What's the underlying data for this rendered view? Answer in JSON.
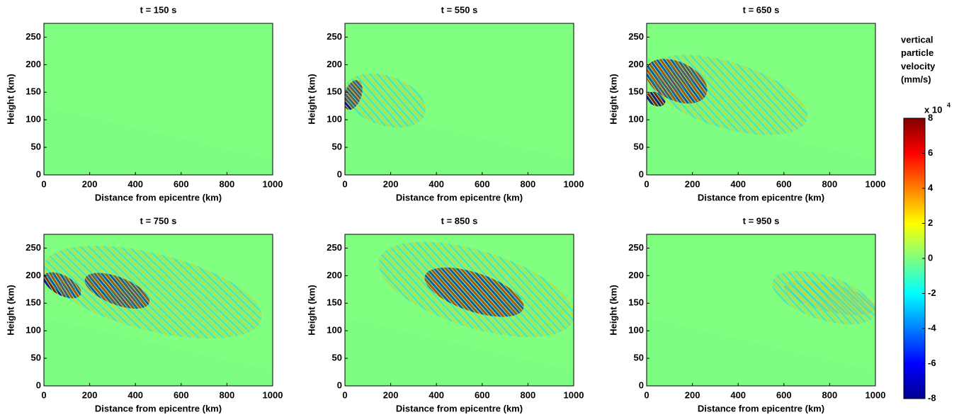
{
  "chart_data": [
    {
      "type": "heatmap",
      "title": "t = 150  s",
      "xlabel": "Distance from epicentre (km)",
      "ylabel": "Height (km)",
      "xlim": [
        0,
        1000
      ],
      "ylim": [
        0,
        275
      ],
      "xticks": [
        0,
        200,
        400,
        600,
        800,
        1000
      ],
      "yticks": [
        0,
        50,
        100,
        150,
        200,
        250
      ]
    },
    {
      "type": "heatmap",
      "title": "t = 550  s",
      "xlabel": "Distance from epicentre (km)",
      "ylabel": "Height (km)",
      "xlim": [
        0,
        1000
      ],
      "ylim": [
        0,
        275
      ],
      "xticks": [
        0,
        200,
        400,
        600,
        800,
        1000
      ],
      "yticks": [
        0,
        50,
        100,
        150,
        200,
        250
      ]
    },
    {
      "type": "heatmap",
      "title": "t = 650  s",
      "xlabel": "Distance from epicentre (km)",
      "ylabel": "Height (km)",
      "xlim": [
        0,
        1000
      ],
      "ylim": [
        0,
        275
      ],
      "xticks": [
        0,
        200,
        400,
        600,
        800,
        1000
      ],
      "yticks": [
        0,
        50,
        100,
        150,
        200,
        250
      ]
    },
    {
      "type": "heatmap",
      "title": "t = 750  s",
      "xlabel": "Distance from epicentre (km)",
      "ylabel": "Height (km)",
      "xlim": [
        0,
        1000
      ],
      "ylim": [
        0,
        275
      ],
      "xticks": [
        0,
        200,
        400,
        600,
        800,
        1000
      ],
      "yticks": [
        0,
        50,
        100,
        150,
        200,
        250
      ]
    },
    {
      "type": "heatmap",
      "title": "t = 850  s",
      "xlabel": "Distance from epicentre (km)",
      "ylabel": "Height (km)",
      "xlim": [
        0,
        1000
      ],
      "ylim": [
        0,
        275
      ],
      "xticks": [
        0,
        200,
        400,
        600,
        800,
        1000
      ],
      "yticks": [
        0,
        50,
        100,
        150,
        200,
        250
      ]
    },
    {
      "type": "heatmap",
      "title": "t = 950  s",
      "xlabel": "Distance from epicentre (km)",
      "ylabel": "Height (km)",
      "xlim": [
        0,
        1000
      ],
      "ylim": [
        0,
        275
      ],
      "xticks": [
        0,
        200,
        400,
        600,
        800,
        1000
      ],
      "yticks": [
        0,
        50,
        100,
        150,
        200,
        250
      ]
    },
    {
      "type": "colorbar",
      "title": [
        "vertical",
        "particle",
        "velocity",
        "(mm/s)"
      ],
      "multiplier": "x 10",
      "exponent": "4",
      "ylim": [
        -8,
        8
      ],
      "yticks": [
        -8,
        -6,
        -4,
        -2,
        0,
        2,
        4,
        6,
        8
      ]
    }
  ]
}
